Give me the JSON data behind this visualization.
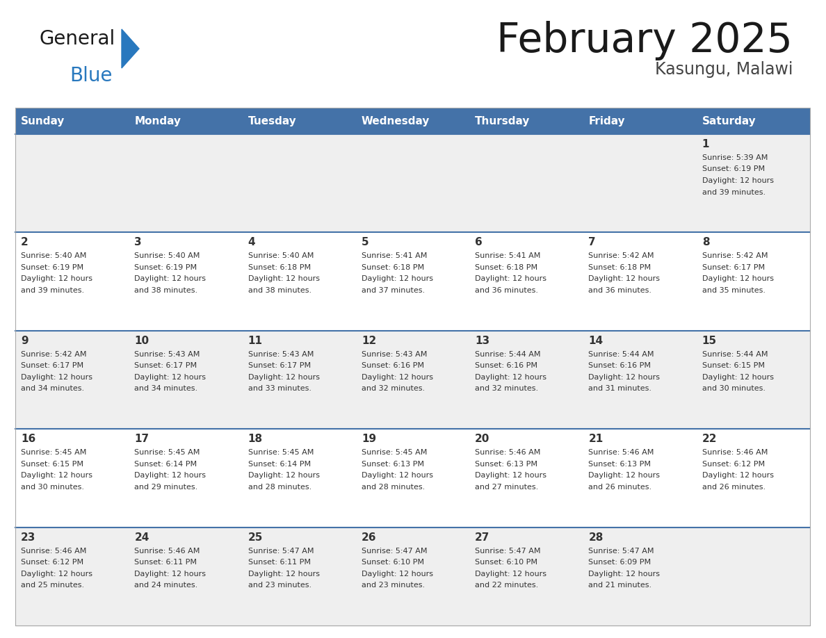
{
  "title": "February 2025",
  "subtitle": "Kasungu, Malawi",
  "days_of_week": [
    "Sunday",
    "Monday",
    "Tuesday",
    "Wednesday",
    "Thursday",
    "Friday",
    "Saturday"
  ],
  "header_bg": "#4472A8",
  "header_text": "#FFFFFF",
  "row_bg_odd": "#EFEFEF",
  "row_bg_even": "#FFFFFF",
  "cell_text_color": "#333333",
  "day_number_color": "#333333",
  "divider_color": "#4472A8",
  "logo_general_color": "#1a1a1a",
  "logo_blue_color": "#2878BE",
  "logo_triangle_color": "#2878BE",
  "calendar_data": [
    [
      null,
      null,
      null,
      null,
      null,
      null,
      {
        "day": 1,
        "sunrise": "5:39 AM",
        "sunset": "6:19 PM",
        "daylight": "12 hours and 39 minutes."
      }
    ],
    [
      {
        "day": 2,
        "sunrise": "5:40 AM",
        "sunset": "6:19 PM",
        "daylight": "12 hours and 39 minutes."
      },
      {
        "day": 3,
        "sunrise": "5:40 AM",
        "sunset": "6:19 PM",
        "daylight": "12 hours and 38 minutes."
      },
      {
        "day": 4,
        "sunrise": "5:40 AM",
        "sunset": "6:18 PM",
        "daylight": "12 hours and 38 minutes."
      },
      {
        "day": 5,
        "sunrise": "5:41 AM",
        "sunset": "6:18 PM",
        "daylight": "12 hours and 37 minutes."
      },
      {
        "day": 6,
        "sunrise": "5:41 AM",
        "sunset": "6:18 PM",
        "daylight": "12 hours and 36 minutes."
      },
      {
        "day": 7,
        "sunrise": "5:42 AM",
        "sunset": "6:18 PM",
        "daylight": "12 hours and 36 minutes."
      },
      {
        "day": 8,
        "sunrise": "5:42 AM",
        "sunset": "6:17 PM",
        "daylight": "12 hours and 35 minutes."
      }
    ],
    [
      {
        "day": 9,
        "sunrise": "5:42 AM",
        "sunset": "6:17 PM",
        "daylight": "12 hours and 34 minutes."
      },
      {
        "day": 10,
        "sunrise": "5:43 AM",
        "sunset": "6:17 PM",
        "daylight": "12 hours and 34 minutes."
      },
      {
        "day": 11,
        "sunrise": "5:43 AM",
        "sunset": "6:17 PM",
        "daylight": "12 hours and 33 minutes."
      },
      {
        "day": 12,
        "sunrise": "5:43 AM",
        "sunset": "6:16 PM",
        "daylight": "12 hours and 32 minutes."
      },
      {
        "day": 13,
        "sunrise": "5:44 AM",
        "sunset": "6:16 PM",
        "daylight": "12 hours and 32 minutes."
      },
      {
        "day": 14,
        "sunrise": "5:44 AM",
        "sunset": "6:16 PM",
        "daylight": "12 hours and 31 minutes."
      },
      {
        "day": 15,
        "sunrise": "5:44 AM",
        "sunset": "6:15 PM",
        "daylight": "12 hours and 30 minutes."
      }
    ],
    [
      {
        "day": 16,
        "sunrise": "5:45 AM",
        "sunset": "6:15 PM",
        "daylight": "12 hours and 30 minutes."
      },
      {
        "day": 17,
        "sunrise": "5:45 AM",
        "sunset": "6:14 PM",
        "daylight": "12 hours and 29 minutes."
      },
      {
        "day": 18,
        "sunrise": "5:45 AM",
        "sunset": "6:14 PM",
        "daylight": "12 hours and 28 minutes."
      },
      {
        "day": 19,
        "sunrise": "5:45 AM",
        "sunset": "6:13 PM",
        "daylight": "12 hours and 28 minutes."
      },
      {
        "day": 20,
        "sunrise": "5:46 AM",
        "sunset": "6:13 PM",
        "daylight": "12 hours and 27 minutes."
      },
      {
        "day": 21,
        "sunrise": "5:46 AM",
        "sunset": "6:13 PM",
        "daylight": "12 hours and 26 minutes."
      },
      {
        "day": 22,
        "sunrise": "5:46 AM",
        "sunset": "6:12 PM",
        "daylight": "12 hours and 26 minutes."
      }
    ],
    [
      {
        "day": 23,
        "sunrise": "5:46 AM",
        "sunset": "6:12 PM",
        "daylight": "12 hours and 25 minutes."
      },
      {
        "day": 24,
        "sunrise": "5:46 AM",
        "sunset": "6:11 PM",
        "daylight": "12 hours and 24 minutes."
      },
      {
        "day": 25,
        "sunrise": "5:47 AM",
        "sunset": "6:11 PM",
        "daylight": "12 hours and 23 minutes."
      },
      {
        "day": 26,
        "sunrise": "5:47 AM",
        "sunset": "6:10 PM",
        "daylight": "12 hours and 23 minutes."
      },
      {
        "day": 27,
        "sunrise": "5:47 AM",
        "sunset": "6:10 PM",
        "daylight": "12 hours and 22 minutes."
      },
      {
        "day": 28,
        "sunrise": "5:47 AM",
        "sunset": "6:09 PM",
        "daylight": "12 hours and 21 minutes."
      },
      null
    ]
  ]
}
